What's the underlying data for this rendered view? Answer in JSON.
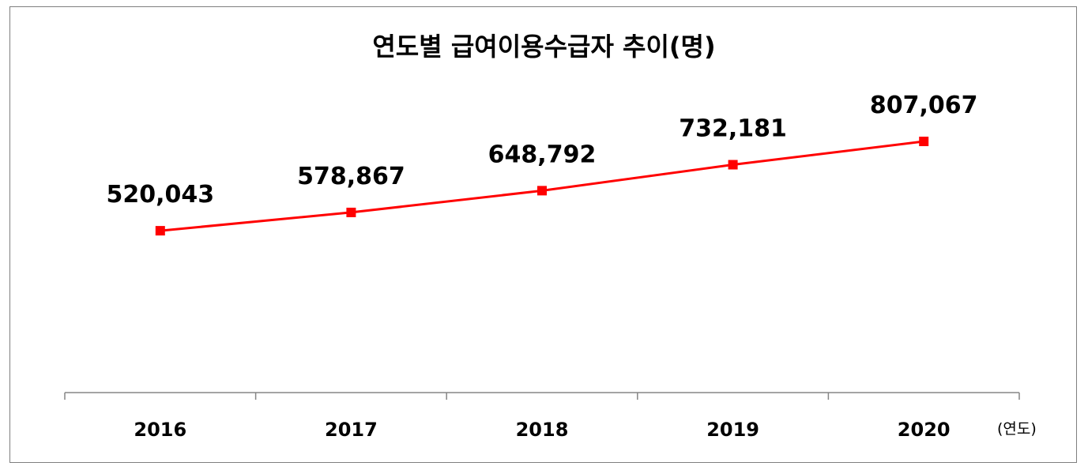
{
  "chart_data": {
    "type": "line",
    "title": "연도별  급여이용수급자 추이(명)",
    "xlabel": "(연도)",
    "ylabel": "",
    "categories": [
      "2016",
      "2017",
      "2018",
      "2019",
      "2020"
    ],
    "series": [
      {
        "name": "",
        "values": [
          520043,
          578867,
          648792,
          732181,
          807067
        ],
        "labels": [
          "520,043",
          "578,867",
          "648,792",
          "732,181",
          "807,067"
        ]
      }
    ],
    "ylim": [
      0,
      900000
    ],
    "grid": false,
    "legend": "none",
    "line_color": "#ff0000",
    "marker": "square"
  }
}
